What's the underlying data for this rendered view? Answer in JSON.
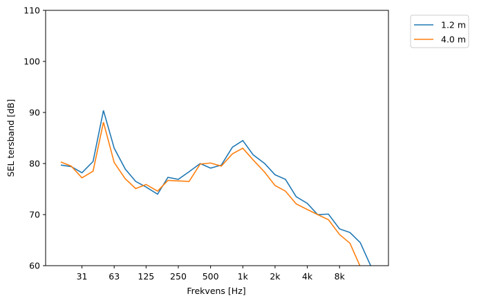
{
  "chart_data": {
    "type": "line",
    "title": "",
    "xlabel": "Frekvens [Hz]",
    "ylabel": "SEL tersband [dB]",
    "ylim": [
      60,
      110
    ],
    "yticks": [
      60,
      70,
      80,
      90,
      100,
      110
    ],
    "xticks": [
      {
        "freq": 31.5,
        "label": "31"
      },
      {
        "freq": 63,
        "label": "63"
      },
      {
        "freq": 125,
        "label": "125"
      },
      {
        "freq": 250,
        "label": "250"
      },
      {
        "freq": 500,
        "label": "500"
      },
      {
        "freq": 1000,
        "label": "1k"
      },
      {
        "freq": 2000,
        "label": "2k"
      },
      {
        "freq": 4000,
        "label": "4k"
      },
      {
        "freq": 8000,
        "label": "8k"
      }
    ],
    "x": [
      20,
      25,
      31.5,
      40,
      50,
      63,
      80,
      100,
      125,
      160,
      200,
      250,
      315,
      400,
      500,
      630,
      800,
      1000,
      1250,
      1600,
      2000,
      2500,
      3150,
      4000,
      5000,
      6300,
      8000,
      10000,
      12500,
      16000
    ],
    "series": [
      {
        "name": "1.2 m",
        "color": "#1f77b4",
        "values": [
          79.7,
          79.4,
          78.2,
          80.4,
          90.4,
          83.0,
          78.9,
          76.5,
          75.4,
          74.0,
          77.3,
          76.9,
          78.4,
          80.0,
          79.1,
          79.7,
          83.2,
          84.5,
          81.7,
          80.0,
          77.8,
          76.9,
          73.5,
          72.2,
          70.0,
          70.1,
          67.2,
          66.5,
          64.5,
          59.5
        ]
      },
      {
        "name": "4.0 m",
        "color": "#ff7f0e",
        "values": [
          80.3,
          79.5,
          77.2,
          78.5,
          88.1,
          80.2,
          77.0,
          75.1,
          75.9,
          74.6,
          76.7,
          76.6,
          76.5,
          79.9,
          80.1,
          79.5,
          81.9,
          83.0,
          80.7,
          78.3,
          75.7,
          74.6,
          72.1,
          71.0,
          70.0,
          69.0,
          66.1,
          64.4,
          59.8,
          55.0
        ]
      }
    ],
    "legend": "outside-top-right",
    "grid": false
  }
}
